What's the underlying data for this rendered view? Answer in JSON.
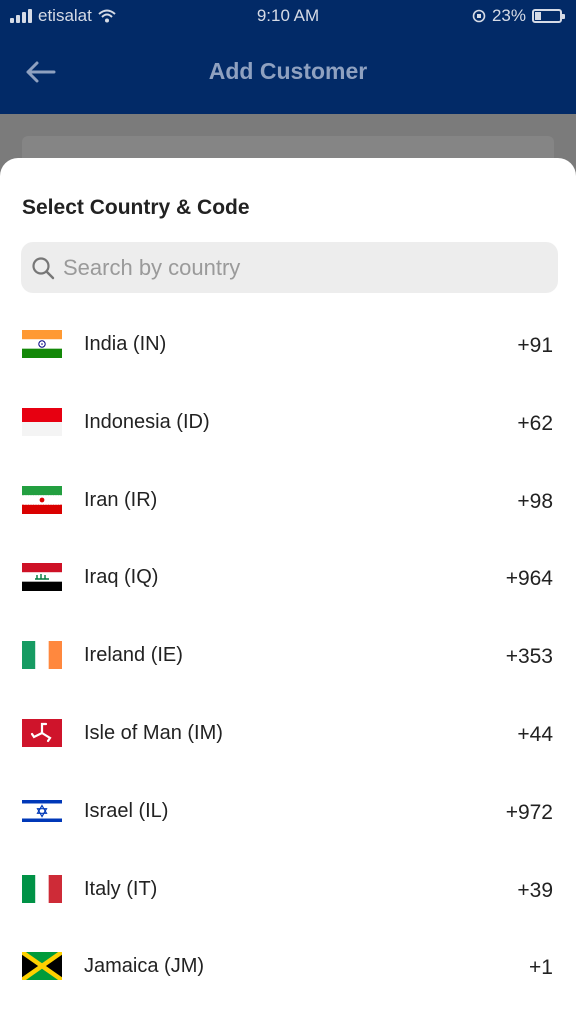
{
  "status_bar": {
    "carrier": "etisalat",
    "time": "9:10 AM",
    "battery": "23%",
    "battery_level": 0.23
  },
  "app_bar": {
    "title": "Add Customer",
    "back_icon": "arrow-left-icon"
  },
  "sheet": {
    "title": "Select Country & Code",
    "search": {
      "placeholder": "Search by country",
      "value": "",
      "icon": "search-icon"
    },
    "countries": [
      {
        "name": "India (IN)",
        "code": "+91",
        "flag": "india-flag-icon"
      },
      {
        "name": "Indonesia (ID)",
        "code": "+62",
        "flag": "indonesia-flag-icon"
      },
      {
        "name": "Iran (IR)",
        "code": "+98",
        "flag": "iran-flag-icon"
      },
      {
        "name": "Iraq (IQ)",
        "code": "+964",
        "flag": "iraq-flag-icon"
      },
      {
        "name": "Ireland (IE)",
        "code": "+353",
        "flag": "ireland-flag-icon"
      },
      {
        "name": "Isle of Man (IM)",
        "code": "+44",
        "flag": "isle-of-man-flag-icon"
      },
      {
        "name": "Israel (IL)",
        "code": "+972",
        "flag": "israel-flag-icon"
      },
      {
        "name": "Italy (IT)",
        "code": "+39",
        "flag": "italy-flag-icon"
      },
      {
        "name": "Jamaica (JM)",
        "code": "+1",
        "flag": "jamaica-flag-icon"
      }
    ]
  },
  "colors": {
    "app_bar": "#022a67",
    "overlay": "#7f7f7f",
    "sheet": "#ffffff",
    "search_bg": "#ededed",
    "text": "#222222"
  }
}
